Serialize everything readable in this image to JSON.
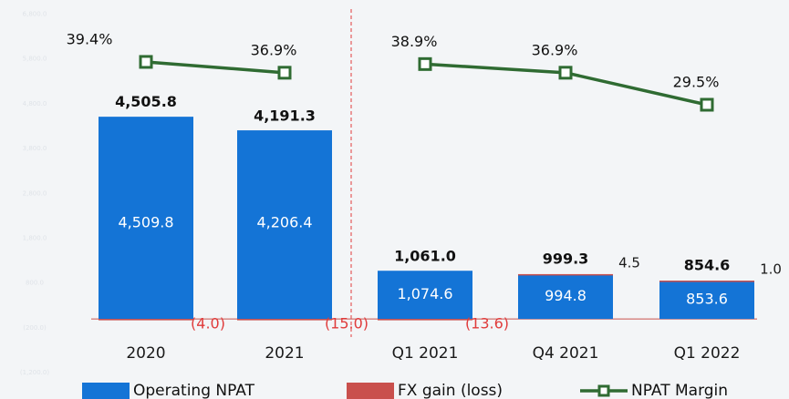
{
  "chart_data": {
    "type": "bar",
    "categories": [
      "2020",
      "2021",
      "Q1 2021",
      "Q4 2021",
      "Q1 2022"
    ],
    "series": [
      {
        "name": "Operating NPAT",
        "color": "#1474d6",
        "values": [
          4509.8,
          4206.4,
          1074.6,
          994.8,
          853.6
        ],
        "value_labels": [
          "4,509.8",
          "4,206.4",
          "1,074.6",
          "994.8",
          "853.6"
        ]
      },
      {
        "name": "FX gain (loss)",
        "color": "#c9504d",
        "values": [
          -4.0,
          -15.0,
          -13.6,
          4.5,
          1.0
        ],
        "value_labels": [
          "(4.0)",
          "(15.0)",
          "(13.6)",
          "4.5",
          "1.0"
        ]
      },
      {
        "name": "NPAT Margin",
        "color": "#2f6b32",
        "type": "line",
        "axis": "y2",
        "values": [
          39.4,
          36.9,
          38.9,
          36.9,
          29.5
        ],
        "value_labels": [
          "39.4%",
          "36.9%",
          "38.9%",
          "36.9%",
          "29.5%"
        ]
      }
    ],
    "totals": {
      "values": [
        4505.8,
        4191.3,
        1061.0,
        999.3,
        854.6
      ],
      "value_labels": [
        "4,505.8",
        "4,191.3",
        "1,061.0",
        "999.3",
        "854.6"
      ]
    },
    "ylim": [
      -1420,
      6910
    ],
    "yticks": [
      {
        "value": -1200,
        "label": "(1,200.0)"
      },
      {
        "value": -200,
        "label": "(200.0)"
      },
      {
        "value": 800,
        "label": "800.0"
      },
      {
        "value": 1800,
        "label": "1,800.0"
      },
      {
        "value": 2800,
        "label": "2,800.0"
      },
      {
        "value": 3800,
        "label": "3,800.0"
      },
      {
        "value": 4800,
        "label": "4,800.0"
      },
      {
        "value": 5800,
        "label": "5,800.0"
      },
      {
        "value": 6800,
        "label": "6,800.0"
      }
    ],
    "y2lim": [
      -34.7,
      51.6
    ],
    "legend": "bottom"
  }
}
